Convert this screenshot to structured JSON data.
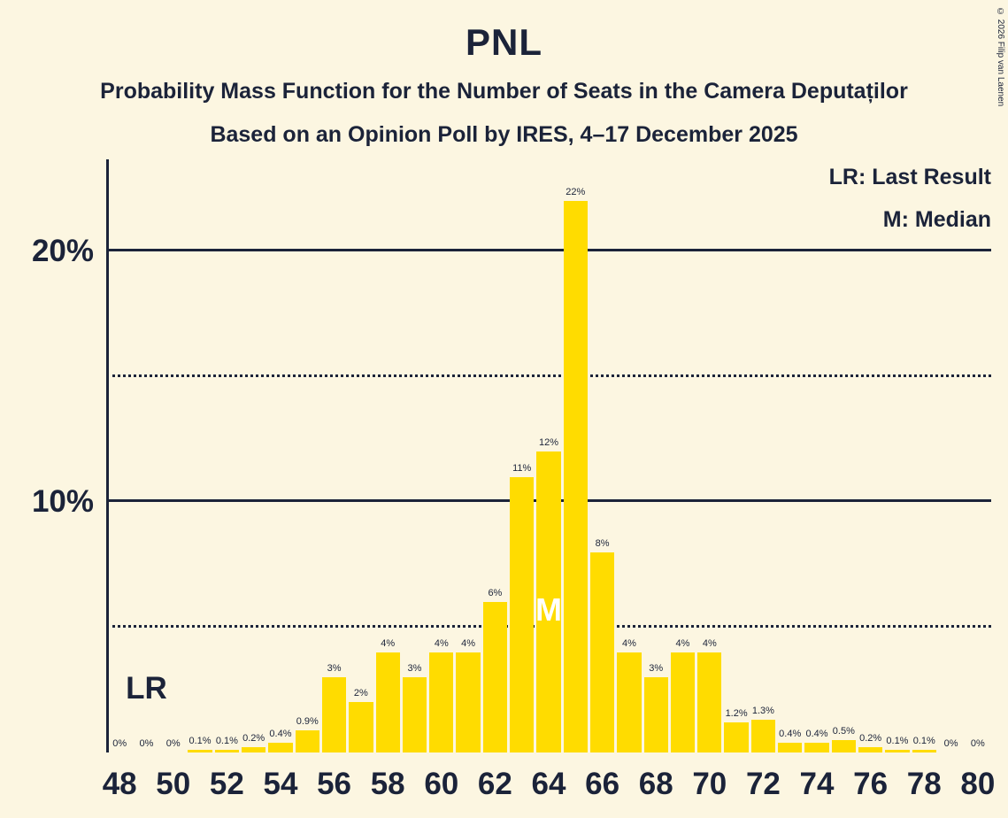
{
  "title": "PNL",
  "subtitles": [
    "Probability Mass Function for the Number of Seats in the Camera Deputaților",
    "Based on an Opinion Poll by IRES, 4–17 December 2025"
  ],
  "copyright": "© 2026 Filip van Laenen",
  "legend": {
    "last_result": "LR: Last Result",
    "median": "M: Median"
  },
  "annotations": {
    "last_result": "LR",
    "median": "M"
  },
  "chart_data": {
    "type": "bar",
    "seats": [
      48,
      49,
      50,
      51,
      52,
      53,
      54,
      55,
      56,
      57,
      58,
      59,
      60,
      61,
      62,
      63,
      64,
      65,
      66,
      67,
      68,
      69,
      70,
      71,
      72,
      73,
      74,
      75,
      76,
      77,
      78,
      79,
      80
    ],
    "values": [
      0,
      0,
      0,
      0.1,
      0.1,
      0.2,
      0.4,
      0.9,
      3,
      2,
      4,
      3,
      4,
      4,
      6,
      11,
      12,
      22,
      8,
      4,
      3,
      4,
      4,
      1.2,
      1.3,
      0.4,
      0.4,
      0.5,
      0.2,
      0.1,
      0.1,
      0,
      0
    ],
    "bar_labels": [
      "0%",
      "0%",
      "0%",
      "0.1%",
      "0.1%",
      "0.2%",
      "0.4%",
      "0.9%",
      "3%",
      "2%",
      "4%",
      "3%",
      "4%",
      "4%",
      "6%",
      "11%",
      "12%",
      "22%",
      "8%",
      "4%",
      "3%",
      "4%",
      "4%",
      "1.2%",
      "1.3%",
      "0.4%",
      "0.4%",
      "0.5%",
      "0.2%",
      "0.1%",
      "0.1%",
      "0%",
      "0%"
    ],
    "x_ticks": [
      48,
      50,
      52,
      54,
      56,
      58,
      60,
      62,
      64,
      66,
      68,
      70,
      72,
      74,
      76,
      78,
      80
    ],
    "y_axis": {
      "tick_labels": [
        {
          "value": 10,
          "label": "10%"
        },
        {
          "value": 20,
          "label": "20%"
        }
      ],
      "solid_lines": [
        10,
        20
      ],
      "dotted_lines": [
        5,
        15
      ]
    },
    "ylim": [
      0,
      23.7
    ],
    "median_seat": 64,
    "last_result_seat": 49,
    "colors": {
      "bar": "#FFDC00",
      "background": "#FCF6E1",
      "text": "#1B2339"
    }
  }
}
